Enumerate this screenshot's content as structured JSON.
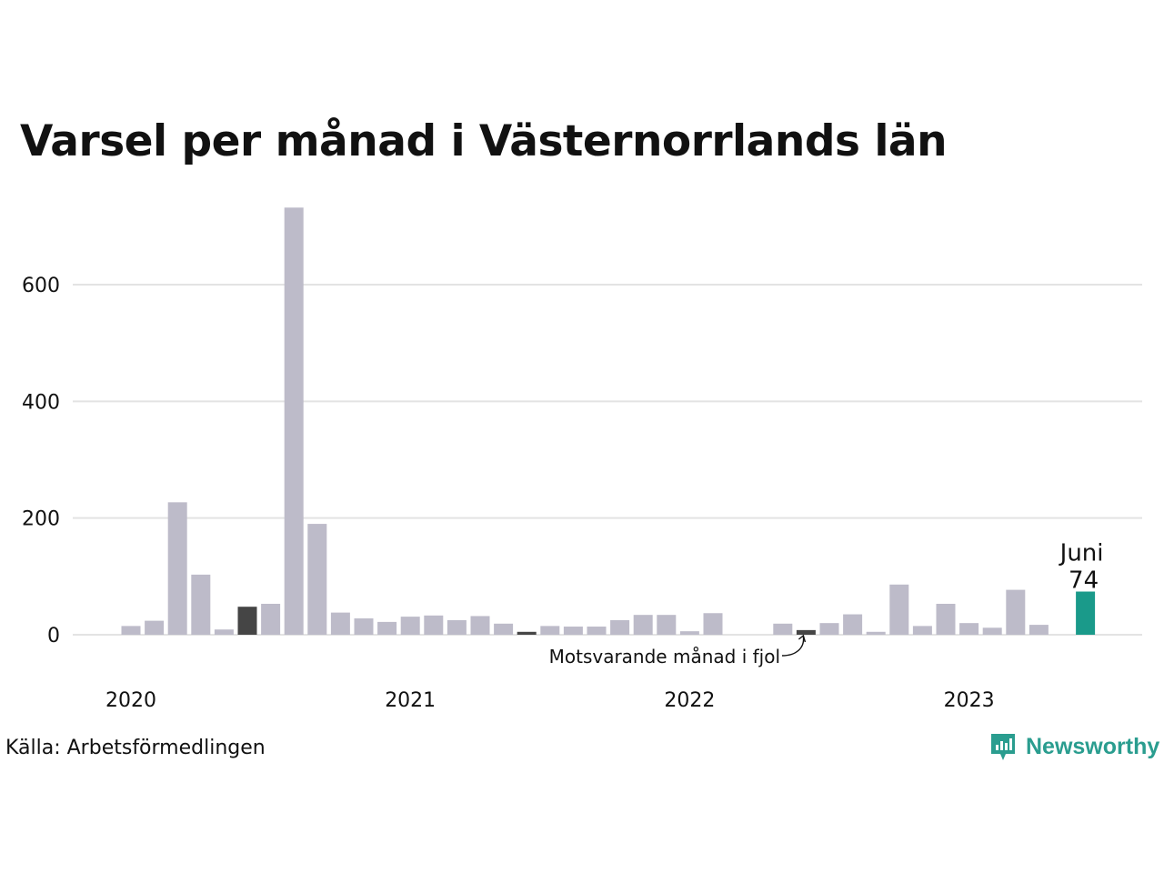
{
  "title": "Varsel per månad i Västernorrlands län",
  "source": "Källa: Arbetsförmedlingen",
  "brand": {
    "name": "Newsworthy",
    "icon": "newsworthy-logo-icon"
  },
  "colors": {
    "bar": "#bdbbc9",
    "highlight": "#1a9a8a",
    "previous_year": "#454545",
    "grid": "#e3e3e3",
    "text": "#111111"
  },
  "chart_data": {
    "type": "bar",
    "title": "Varsel per månad i Västernorrlands län",
    "xlabel": "",
    "ylabel": "",
    "x_tick_labels": [
      "2020",
      "2021",
      "2022",
      "2023"
    ],
    "y_ticks": [
      0,
      200,
      400,
      600
    ],
    "ylim": [
      0,
      740
    ],
    "grid": true,
    "categories": [
      "2020-01",
      "2020-02",
      "2020-03",
      "2020-04",
      "2020-05",
      "2020-06",
      "2020-07",
      "2020-08",
      "2020-09",
      "2020-10",
      "2020-11",
      "2020-12",
      "2021-01",
      "2021-02",
      "2021-03",
      "2021-04",
      "2021-05",
      "2021-06",
      "2021-07",
      "2021-08",
      "2021-09",
      "2021-10",
      "2021-11",
      "2021-12",
      "2022-01",
      "2022-02",
      "2022-03",
      "2022-04",
      "2022-05",
      "2022-06",
      "2022-07",
      "2022-08",
      "2022-09",
      "2022-10",
      "2022-11",
      "2022-12",
      "2023-01",
      "2023-02",
      "2023-03",
      "2023-04",
      "2023-05",
      "2023-06"
    ],
    "values": [
      15,
      24,
      227,
      103,
      9,
      48,
      53,
      732,
      190,
      38,
      28,
      22,
      31,
      33,
      25,
      32,
      19,
      5,
      15,
      14,
      14,
      25,
      34,
      34,
      6,
      37,
      0,
      0,
      19,
      8,
      20,
      35,
      5,
      86,
      15,
      53,
      20,
      12,
      77,
      17,
      0,
      74
    ],
    "previous_year_indices": [
      5,
      17,
      29
    ],
    "highlight_index": 41,
    "highlight_label": {
      "month": "Juni",
      "value": "74"
    },
    "annotation": "Motsvarande månad i fjol"
  }
}
